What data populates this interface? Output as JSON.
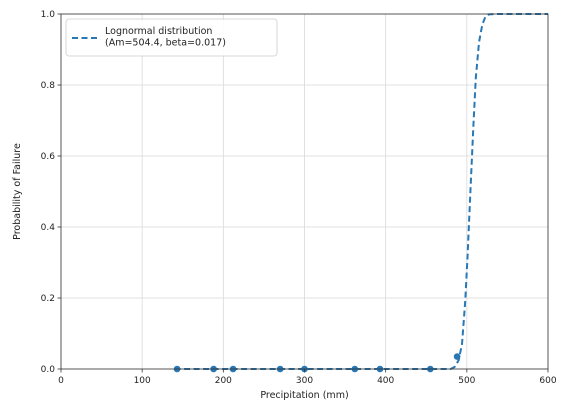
{
  "chart_data": {
    "type": "line",
    "xlabel": "Precipitation (mm)",
    "ylabel": "Probability of Failure",
    "xlim": [
      0,
      600
    ],
    "ylim": [
      0,
      1.0
    ],
    "x_ticks": [
      "0",
      "100",
      "200",
      "300",
      "400",
      "500",
      "600"
    ],
    "y_ticks": [
      "0.0",
      "0.2",
      "0.4",
      "0.6",
      "0.8",
      "1.0"
    ],
    "grid": true,
    "legend_position": "top-left",
    "color": "#2878b5",
    "series": [
      {
        "name": "Lognormal distribution\n(Am=504.4, beta=0.017)",
        "style": "dashed",
        "x": [
          140,
          460,
          470,
          480,
          485,
          490,
          494,
          498,
          501,
          504.4,
          508,
          511,
          515,
          519,
          523,
          527,
          535,
          545,
          600
        ],
        "y": [
          0.0,
          0.0,
          0.0,
          0.0,
          0.006,
          0.025,
          0.07,
          0.19,
          0.32,
          0.5,
          0.68,
          0.82,
          0.92,
          0.97,
          0.993,
          0.999,
          1.0,
          1.0,
          1.0
        ]
      },
      {
        "name": "",
        "style": "markers",
        "x": [
          143,
          188,
          212,
          270,
          300,
          362,
          393,
          455,
          488
        ],
        "y": [
          0.0,
          0.0,
          0.0,
          0.0,
          0.0,
          0.0,
          0.0,
          0.0,
          0.035
        ]
      }
    ]
  }
}
